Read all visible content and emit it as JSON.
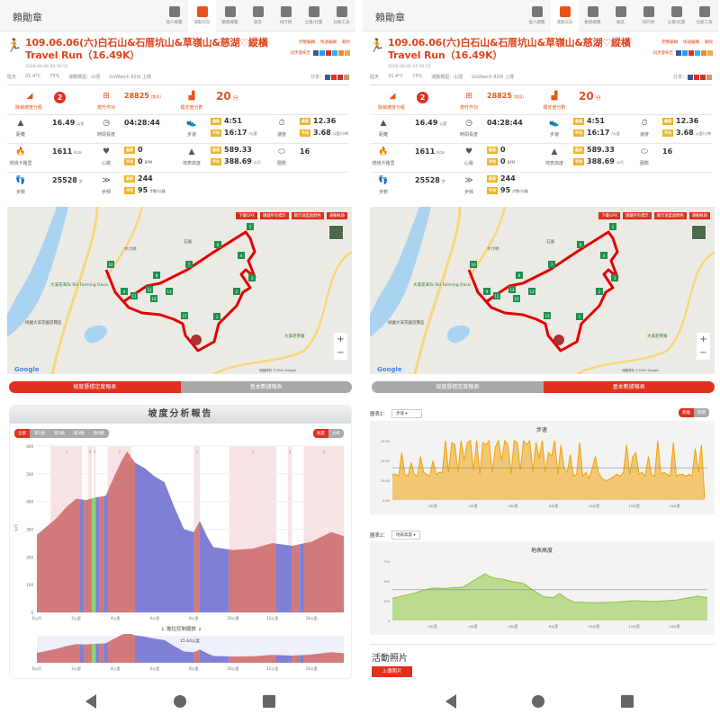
{
  "header": {
    "user": "賴勛章",
    "nav": [
      "個人總覽",
      "運動日記",
      "動態總覽",
      "朋友",
      "排行榜",
      "企業/社團",
      "比較工具"
    ],
    "active": 1
  },
  "activity": {
    "title": "109.06.06(六)白石山&石厝坑山&草嶺山&慈湖♡縱橫Travel Run（16.49K）",
    "datetime": "2020-06-06 05:56:51",
    "actions": [
      "完整編輯",
      "快速編輯",
      "刪除"
    ],
    "sync_label": "同步發佈至",
    "weather": "陰天",
    "temperature": "31.4°C",
    "humidity": "75%",
    "sport_type": "運動類型：山徑",
    "device": "GoWatch 820i 上傳",
    "share_label": "分享："
  },
  "stats": {
    "slope_grade": {
      "label": "陡峭坡度分級",
      "value": "2"
    },
    "climb_work": {
      "label": "爬升作功",
      "value": "28825",
      "unit": "(焦耳)"
    },
    "stability": {
      "label": "穩定度分數",
      "value": "20",
      "unit": "分"
    },
    "distance": {
      "label": "距離",
      "value": "16.49",
      "unit": "公里"
    },
    "duration": {
      "label": "時間長度",
      "value": "04:28:44"
    },
    "pace": {
      "label": "步速",
      "max": "4:51",
      "avg": "16:17",
      "unit": "/公里"
    },
    "speed": {
      "label": "速度",
      "max": "12.36",
      "avg": "3.68",
      "unit": "公里/小時"
    },
    "calories": {
      "label": "燃燒卡路里",
      "value": "1611",
      "unit": "Kcal"
    },
    "heart": {
      "label": "心跳",
      "max": "0",
      "avg": "0",
      "unit": "BPM"
    },
    "altitude": {
      "label": "地表高度",
      "max": "589.33",
      "avg": "388.69",
      "unit": "公尺"
    },
    "laps": {
      "label": "圈數",
      "value": "16"
    },
    "steps": {
      "label": "步數",
      "value": "25528",
      "unit": "步"
    },
    "cadence": {
      "label": "步頻",
      "max": "244",
      "avg": "95",
      "unit": "步數/分鐘"
    },
    "badge_max": "最高",
    "badge_avg": "平均"
  },
  "map": {
    "buttons": [
      "下載GPX",
      "隱藏所有標示",
      "顯示速度面顏色",
      "運動軌跡"
    ],
    "labels": [
      "大溪花海Ta Shi Farming Oasis",
      "大溪老茶廠",
      "桃園大溪花園遊覽區",
      "石屋",
      "石園",
      "水汴頭"
    ],
    "markers": [
      "1",
      "2",
      "3",
      "4",
      "5",
      "6",
      "7",
      "8",
      "9",
      "10",
      "11",
      "12",
      "13",
      "14",
      "15"
    ],
    "zoom_in": "+",
    "zoom_out": "−",
    "attribution": "地圖資料 ©2020 Google",
    "logo": "Google"
  },
  "tabs": [
    "坡度暨穩定度報表",
    "基本數據報表"
  ],
  "slope_report": {
    "title": "坡度分析報告",
    "laps": [
      "全部",
      "第1圈",
      "第2圈",
      "第3圈",
      "第4圈"
    ],
    "modes": [
      "坡度",
      "分析"
    ],
    "drag_hint": "↓ 拖拉控制縮放 ↓",
    "range_label": "15.64公里"
  },
  "basic_report": {
    "chart1_label": "圖表1：",
    "chart1_select": "步速",
    "chart2_label": "圖表2：",
    "chart2_select": "地表高度",
    "modes": [
      "距離",
      "時間"
    ],
    "photos_title": "活動照片",
    "upload_button": "上傳照片"
  },
  "chart_data": [
    {
      "type": "area",
      "title": "坡度分析報告",
      "xlabel": "公里",
      "ylabel": "公尺",
      "ylim": [
        0,
        600
      ],
      "xlim": [
        0,
        15.64
      ],
      "yticks": [
        "0",
        "100",
        "200",
        "300",
        "400",
        "500",
        "600"
      ],
      "xticks": [
        "0公尺",
        "2公里",
        "4公里",
        "6公里",
        "8公里",
        "10公里",
        "12公里",
        "14公里"
      ],
      "x": [
        0,
        0.5,
        1,
        1.5,
        2,
        2.5,
        3,
        3.5,
        4,
        4.3,
        4.6,
        4.8,
        5,
        5.5,
        6,
        6.5,
        7,
        7.5,
        8,
        8.3,
        8.7,
        9,
        10,
        11,
        12,
        13,
        14,
        15,
        15.64
      ],
      "y": [
        280,
        310,
        340,
        380,
        410,
        405,
        415,
        420,
        500,
        545,
        580,
        560,
        540,
        520,
        490,
        470,
        380,
        300,
        290,
        330,
        270,
        235,
        225,
        230,
        250,
        240,
        255,
        290,
        275
      ],
      "segments": [
        {
          "from": 0,
          "to": 2.2,
          "grade": "up"
        },
        {
          "from": 2.2,
          "to": 2.4,
          "grade": "down"
        },
        {
          "from": 2.4,
          "to": 2.8,
          "grade": "up"
        },
        {
          "from": 2.8,
          "to": 3.0,
          "grade": "flat"
        },
        {
          "from": 3.0,
          "to": 3.2,
          "grade": "down"
        },
        {
          "from": 3.2,
          "to": 3.4,
          "grade": "up"
        },
        {
          "from": 3.4,
          "to": 3.6,
          "grade": "down"
        },
        {
          "from": 3.6,
          "to": 5.0,
          "grade": "up"
        },
        {
          "from": 5.0,
          "to": 8.0,
          "grade": "down"
        },
        {
          "from": 8.0,
          "to": 8.3,
          "grade": "up"
        },
        {
          "from": 8.3,
          "to": 9.8,
          "grade": "down"
        },
        {
          "from": 9.8,
          "to": 12.2,
          "grade": "up"
        },
        {
          "from": 12.2,
          "to": 13.0,
          "grade": "down"
        },
        {
          "from": 13.0,
          "to": 13.4,
          "grade": "up"
        },
        {
          "from": 13.4,
          "to": 13.6,
          "grade": "down"
        },
        {
          "from": 13.6,
          "to": 15.64,
          "grade": "up"
        }
      ],
      "bands": [
        {
          "from": 0.7,
          "to": 2.3,
          "label": "3"
        },
        {
          "from": 2.6,
          "to": 2.8,
          "label": "4"
        },
        {
          "from": 2.9,
          "to": 3.0,
          "label": "4"
        },
        {
          "from": 3.6,
          "to": 4.8,
          "label": "3"
        },
        {
          "from": 8.0,
          "to": 8.3,
          "label": "3"
        },
        {
          "from": 9.8,
          "to": 12.2,
          "label": "4"
        },
        {
          "from": 12.8,
          "to": 13.0,
          "label": "4"
        },
        {
          "from": 13.6,
          "to": 15.64,
          "label": "4"
        }
      ],
      "colors": {
        "up": "#d27a7a",
        "down": "#7f7fd6",
        "flat": "#8ed27a",
        "band": "#f7e3e3"
      }
    },
    {
      "type": "area",
      "title": "步速",
      "ylim": [
        0,
        30
      ],
      "xlim": [
        0,
        15.64
      ],
      "yticks": [
        "0:00",
        "10:00",
        "20:00",
        "30:00"
      ],
      "xticks": [
        "2公里",
        "4公里",
        "6公里",
        "8公里",
        "10公里",
        "12公里",
        "14公里"
      ],
      "avg": 16.28,
      "values": [
        13,
        13,
        12,
        24,
        13,
        12,
        19,
        13,
        12,
        22,
        14,
        13,
        12,
        20,
        13,
        14,
        14,
        30,
        14,
        29,
        28,
        14,
        30,
        20,
        29,
        30,
        15,
        30,
        13,
        29,
        28,
        30,
        14,
        27,
        30,
        20,
        30,
        28,
        13,
        30,
        29,
        15,
        30,
        28,
        30,
        14,
        29,
        21,
        30,
        14,
        24,
        22,
        30,
        13,
        28,
        16,
        14,
        23,
        12,
        13,
        29,
        12,
        14,
        11,
        16,
        22,
        14,
        11,
        10,
        10,
        11,
        12,
        13,
        12,
        14,
        28,
        13,
        22,
        24,
        13,
        14,
        12,
        22,
        13,
        12,
        30,
        13,
        14,
        13,
        12,
        29,
        12,
        13,
        13,
        12,
        13,
        12,
        26,
        14,
        28,
        1
      ],
      "color": "#f0a30a"
    },
    {
      "type": "area",
      "title": "地表高度",
      "ylim": [
        0,
        750
      ],
      "xlim": [
        0,
        15.64
      ],
      "yticks": [
        "0",
        "250",
        "500",
        "750"
      ],
      "xticks": [
        "2公里",
        "4公里",
        "6公里",
        "8公里",
        "10公里",
        "12公里",
        "14公里"
      ],
      "avg": 388.69,
      "x": [
        0,
        0.5,
        1,
        1.5,
        2,
        2.5,
        3,
        3.5,
        4,
        4.3,
        4.6,
        4.8,
        5,
        5.5,
        6,
        6.5,
        7,
        7.5,
        8,
        8.3,
        8.7,
        9,
        10,
        11,
        12,
        13,
        14,
        15,
        15.1,
        15.64
      ],
      "y": [
        280,
        310,
        340,
        380,
        410,
        405,
        415,
        420,
        500,
        545,
        590,
        560,
        540,
        520,
        490,
        470,
        380,
        300,
        290,
        340,
        270,
        235,
        225,
        230,
        250,
        240,
        255,
        300,
        310,
        290
      ],
      "color": "#8cc63f"
    }
  ]
}
